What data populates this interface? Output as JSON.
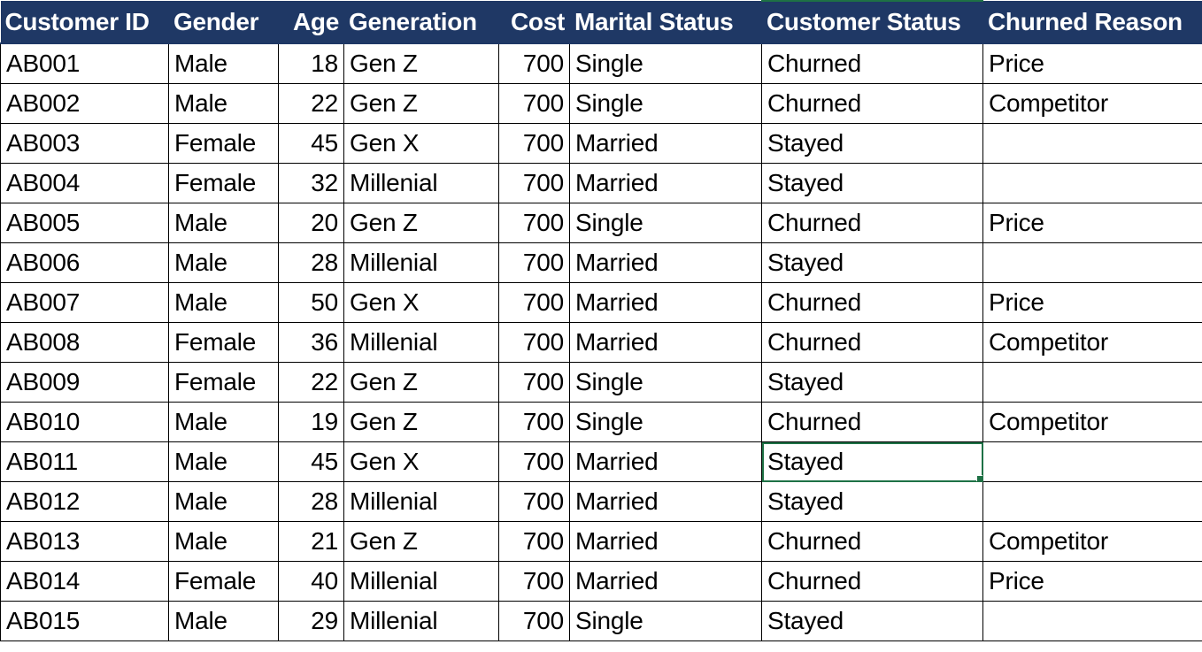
{
  "sheet": {
    "headers": [
      "Customer ID",
      "Gender",
      "Age",
      "Generation",
      "Cost",
      "Marital Status",
      "Customer Status",
      "Churned Reason"
    ],
    "rows": [
      [
        "AB001",
        "Male",
        "18",
        "Gen Z",
        "700",
        "Single",
        "Churned",
        "Price"
      ],
      [
        "AB002",
        "Male",
        "22",
        "Gen Z",
        "700",
        "Single",
        "Churned",
        "Competitor"
      ],
      [
        "AB003",
        "Female",
        "45",
        "Gen X",
        "700",
        "Married",
        "Stayed",
        ""
      ],
      [
        "AB004",
        "Female",
        "32",
        "Millenial",
        "700",
        "Married",
        "Stayed",
        ""
      ],
      [
        "AB005",
        "Male",
        "20",
        "Gen Z",
        "700",
        "Single",
        "Churned",
        "Price"
      ],
      [
        "AB006",
        "Male",
        "28",
        "Millenial",
        "700",
        "Married",
        "Stayed",
        ""
      ],
      [
        "AB007",
        "Male",
        "50",
        "Gen X",
        "700",
        "Married",
        "Churned",
        "Price"
      ],
      [
        "AB008",
        "Female",
        "36",
        "Millenial",
        "700",
        "Married",
        "Churned",
        "Competitor"
      ],
      [
        "AB009",
        "Female",
        "22",
        "Gen Z",
        "700",
        "Single",
        "Stayed",
        ""
      ],
      [
        "AB010",
        "Male",
        "19",
        "Gen Z",
        "700",
        "Single",
        "Churned",
        "Competitor"
      ],
      [
        "AB011",
        "Male",
        "45",
        "Gen X",
        "700",
        "Married",
        "Stayed",
        ""
      ],
      [
        "AB012",
        "Male",
        "28",
        "Millenial",
        "700",
        "Married",
        "Stayed",
        ""
      ],
      [
        "AB013",
        "Male",
        "21",
        "Gen Z",
        "700",
        "Married",
        "Churned",
        "Competitor"
      ],
      [
        "AB014",
        "Female",
        "40",
        "Millenial",
        "700",
        "Married",
        "Churned",
        "Price"
      ],
      [
        "AB015",
        "Male",
        "29",
        "Millenial",
        "700",
        "Single",
        "Stayed",
        ""
      ]
    ]
  },
  "colors": {
    "header_bg": "#1f3865",
    "header_text": "#ffffff",
    "selection": "#1e7145",
    "grid": "#000000"
  }
}
